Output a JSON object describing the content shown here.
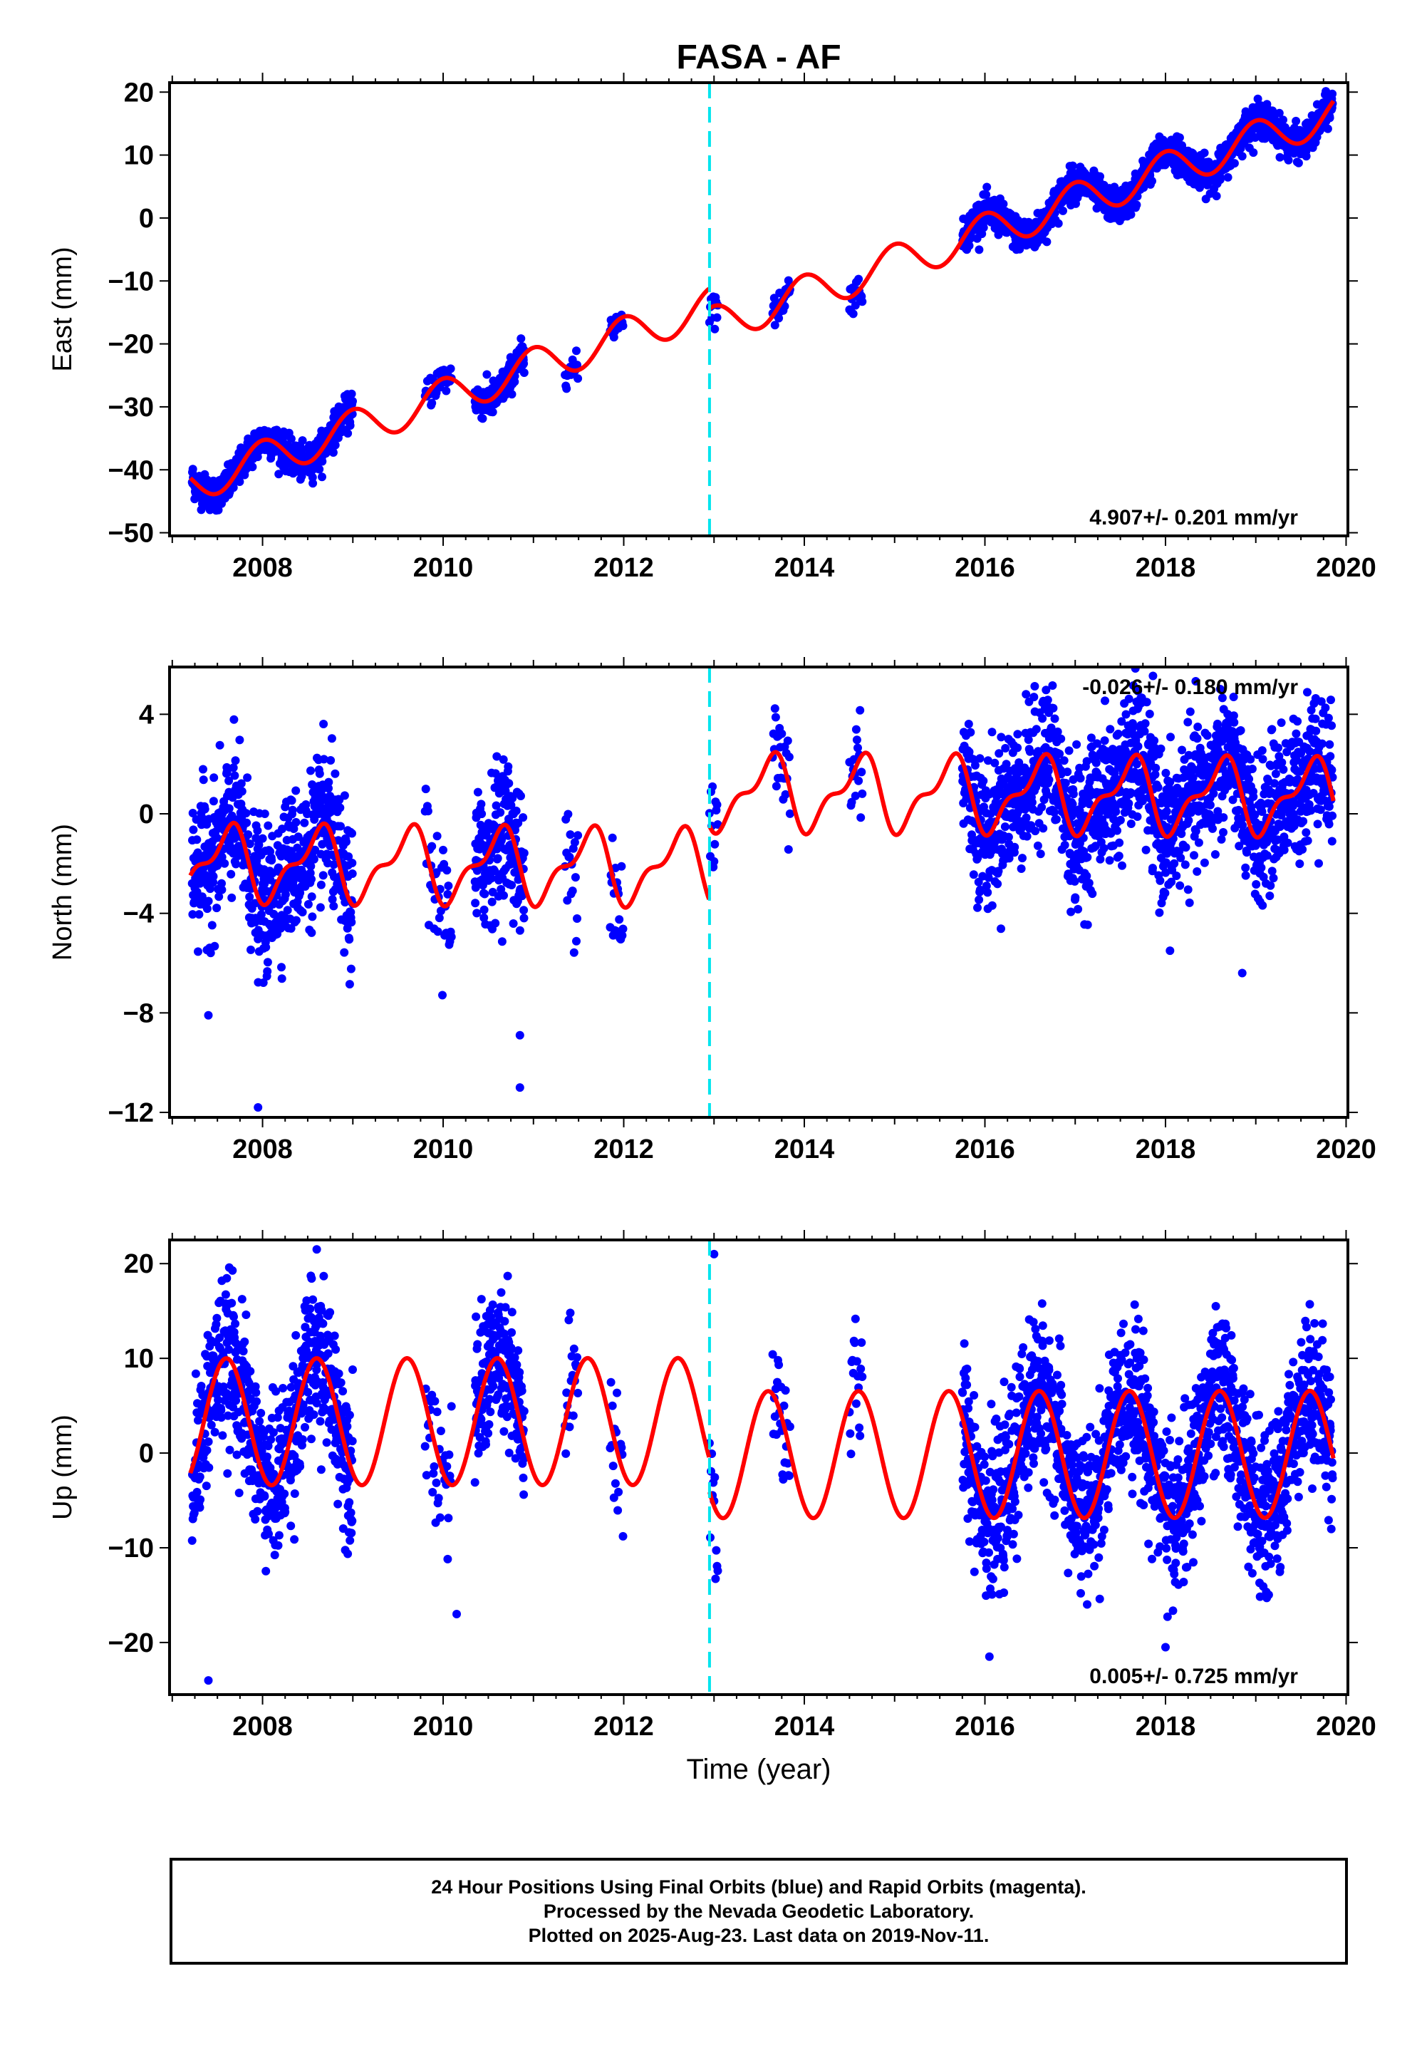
{
  "title": "FASA - AF",
  "colors": {
    "data_points": "#0000ff",
    "model": "#ff0000",
    "break_line": "#00e5ee",
    "frame": "#000000"
  },
  "footer": {
    "line1": "24 Hour Positions Using Final Orbits (blue) and Rapid Orbits (magenta).",
    "line2": "Processed by the Nevada Geodetic Laboratory.",
    "line3": "Plotted on 2025-Aug-23. Last data on 2019-Nov-11."
  },
  "chart_data": [
    {
      "type": "scatter",
      "component": "east",
      "ylabel": "East (mm)",
      "xlim": [
        2006.97,
        2020.02
      ],
      "ylim": [
        -50.5,
        21.5
      ],
      "yticks": [
        -50,
        -40,
        -30,
        -20,
        -10,
        0,
        10,
        20
      ],
      "xticks": [
        2008,
        2010,
        2012,
        2014,
        2016,
        2018,
        2020
      ],
      "xlabel": "",
      "annotation": "4.907+/- 0.201 mm/yr",
      "annotation_position": "bottom-right",
      "break_year": 2012.95,
      "model": {
        "rate": 4.907,
        "base": -42.0,
        "t0": 2007.25,
        "amp": 3.0,
        "phase": 0.75,
        "offset_after_break": -3.2
      },
      "data_segments": [
        [
          2007.22,
          2008.45
        ],
        [
          2008.45,
          2009.0
        ],
        [
          2009.8,
          2010.1
        ],
        [
          2010.35,
          2010.9
        ],
        [
          2011.35,
          2011.5
        ],
        [
          2011.85,
          2012.0
        ],
        [
          2012.95,
          2013.05
        ],
        [
          2013.65,
          2013.85
        ],
        [
          2014.5,
          2014.65
        ],
        [
          2015.75,
          2016.25
        ],
        [
          2016.25,
          2019.85
        ]
      ],
      "noise_sd": 1.3
    },
    {
      "type": "scatter",
      "component": "north",
      "ylabel": "North (mm)",
      "xlim": [
        2006.97,
        2020.02
      ],
      "ylim": [
        -12.2,
        5.9
      ],
      "yticks": [
        -12,
        -8,
        -4,
        0,
        4
      ],
      "xticks": [
        2008,
        2010,
        2012,
        2014,
        2016,
        2018,
        2020
      ],
      "xlabel": "",
      "annotation": "-0.026+/- 0.180 mm/yr",
      "annotation_position": "top-right",
      "break_year": 2012.95,
      "model": {
        "rate": -0.026,
        "base": -2.0,
        "t0": 2007.25,
        "amp1": 1.3,
        "phase1": 0.35,
        "amp2": 0.6,
        "phase2": 0.1,
        "offset_after_break": 3.0
      },
      "data_segments": [
        [
          2007.22,
          2008.45
        ],
        [
          2008.45,
          2009.0
        ],
        [
          2009.8,
          2010.1
        ],
        [
          2010.35,
          2010.9
        ],
        [
          2011.35,
          2011.5
        ],
        [
          2011.85,
          2012.0
        ],
        [
          2012.95,
          2013.05
        ],
        [
          2013.65,
          2013.85
        ],
        [
          2014.5,
          2014.65
        ],
        [
          2015.75,
          2016.25
        ],
        [
          2016.25,
          2019.85
        ]
      ],
      "noise_sd": 1.4,
      "outliers": [
        [
          2007.4,
          -8.1
        ],
        [
          2007.95,
          -11.8
        ],
        [
          2010.85,
          -8.9
        ],
        [
          2010.85,
          -11.0
        ],
        [
          2018.05,
          -5.5
        ],
        [
          2018.85,
          -6.4
        ]
      ]
    },
    {
      "type": "scatter",
      "component": "up",
      "ylabel": "Up (mm)",
      "xlim": [
        2006.97,
        2020.02
      ],
      "ylim": [
        -25.5,
        22.5
      ],
      "yticks": [
        -20,
        -10,
        0,
        10,
        20
      ],
      "xticks": [
        2008,
        2010,
        2012,
        2014,
        2016,
        2018,
        2020
      ],
      "xlabel": "Time (year)",
      "annotation": "0.005+/- 0.725 mm/yr",
      "annotation_position": "bottom-right",
      "break_year": 2012.95,
      "model": {
        "rate": 0.005,
        "base": 3.3,
        "t0": 2007.25,
        "amp": 6.7,
        "phase": 0.35,
        "offset_after_break": -3.5
      },
      "data_segments": [
        [
          2007.22,
          2008.45
        ],
        [
          2008.45,
          2009.0
        ],
        [
          2009.8,
          2010.1
        ],
        [
          2010.35,
          2010.9
        ],
        [
          2011.35,
          2011.5
        ],
        [
          2011.85,
          2012.0
        ],
        [
          2012.95,
          2013.05
        ],
        [
          2013.65,
          2013.85
        ],
        [
          2014.5,
          2014.65
        ],
        [
          2015.75,
          2016.25
        ],
        [
          2016.25,
          2019.85
        ]
      ],
      "noise_sd": 4.0,
      "outliers": [
        [
          2007.4,
          -24.0
        ],
        [
          2008.6,
          21.5
        ],
        [
          2013.0,
          21.0
        ],
        [
          2016.05,
          -21.5
        ],
        [
          2018.0,
          -20.5
        ],
        [
          2010.15,
          -17.0
        ]
      ]
    }
  ]
}
